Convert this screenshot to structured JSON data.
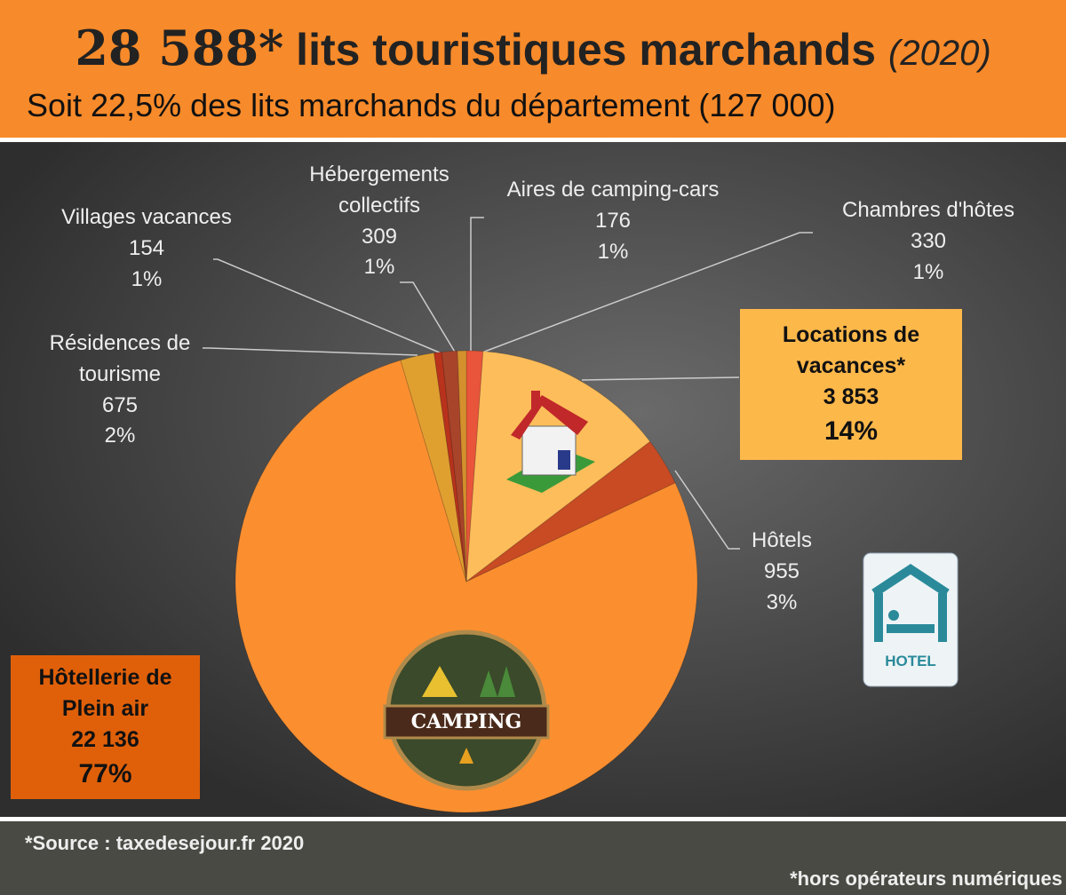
{
  "header": {
    "total": "28 588*",
    "title": "lits touristiques marchands",
    "year": "(2020)",
    "subtitle": "Soit 22,5% des lits marchands du département (127 000)"
  },
  "chart_data": {
    "type": "pie",
    "categories": [
      "Chambres d'hôtes",
      "Locations de vacances*",
      "Hôtels",
      "Hôtellerie de Plein air",
      "Résidences de tourisme",
      "Villages vacances",
      "Hébergements collectifs",
      "Aires de camping-cars"
    ],
    "values": [
      330,
      3853,
      955,
      22136,
      675,
      154,
      309,
      176
    ],
    "value_labels": [
      "330",
      "3 853",
      "955",
      "22 136",
      "675",
      "154",
      "309",
      "176"
    ],
    "percent_labels": [
      "1%",
      "14%",
      "3%",
      "77%",
      "2%",
      "1%",
      "1%",
      "1%"
    ],
    "colors": [
      "#e8553a",
      "#fdbd5a",
      "#c84b24",
      "#fb8f30",
      "#e0a030",
      "#b8321c",
      "#a8442a",
      "#d4902c"
    ]
  },
  "icons": {
    "camping": "CAMPING",
    "hotel": "HOTEL"
  },
  "footer": {
    "source": "*Source : taxedesejour.fr 2020",
    "note": "*hors opérateurs numériques"
  }
}
